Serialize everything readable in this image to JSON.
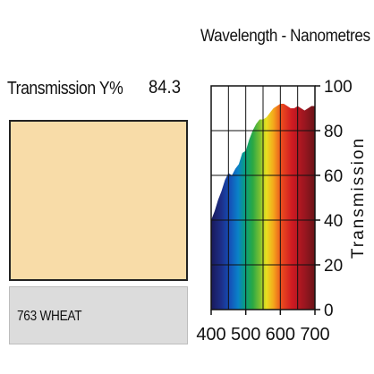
{
  "swatch": {
    "transmission_label": "Transmission Y%",
    "transmission_value": "84.3",
    "color": "#f8dca8",
    "name": "763 WHEAT"
  },
  "chart_data": {
    "type": "area",
    "title": "Wavelength - Nanometres",
    "xlabel": "",
    "ylabel": "Transmission",
    "xlim": [
      400,
      700
    ],
    "ylim": [
      0,
      100
    ],
    "x_ticks": [
      "400",
      "500",
      "600",
      "700"
    ],
    "y_ticks": [
      "0",
      "20",
      "40",
      "60",
      "80",
      "100"
    ],
    "grid": true,
    "x": [
      400,
      410,
      420,
      430,
      440,
      450,
      460,
      470,
      480,
      490,
      500,
      510,
      520,
      530,
      540,
      550,
      560,
      570,
      580,
      590,
      600,
      610,
      620,
      630,
      640,
      650,
      660,
      670,
      680,
      690,
      700
    ],
    "values": [
      40,
      44,
      49,
      53,
      58,
      61,
      60,
      63,
      65,
      70,
      71,
      76,
      80,
      83,
      85,
      85,
      86,
      88,
      90,
      91,
      92,
      92,
      91,
      90,
      90,
      91,
      90,
      89,
      90,
      91,
      91
    ]
  }
}
